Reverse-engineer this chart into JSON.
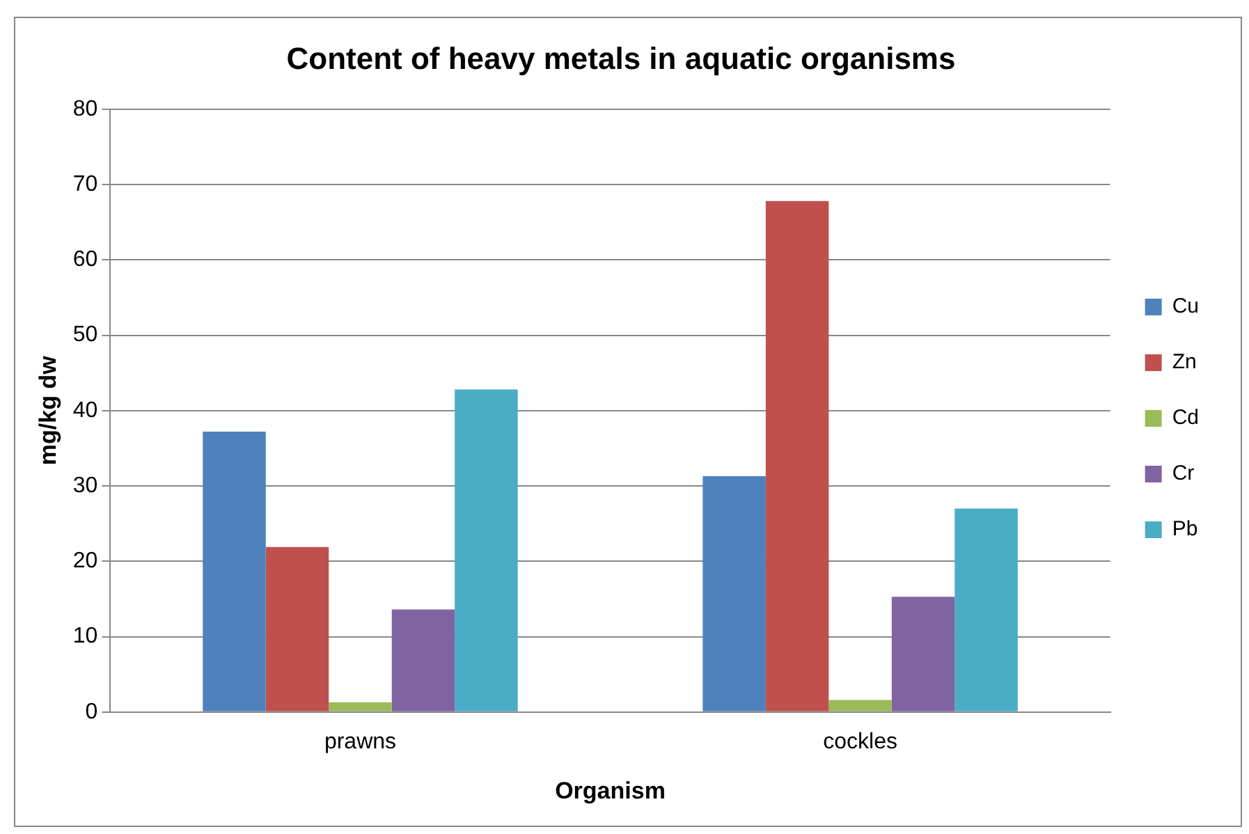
{
  "chart_data": {
    "type": "bar",
    "title": "Content of heavy metals in aquatic organisms",
    "xlabel": "Organism",
    "ylabel": "mg/kg dw",
    "categories": [
      "prawns",
      "cockles"
    ],
    "series": [
      {
        "name": "Cu",
        "color": "#4f81bd",
        "values": [
          37.2,
          31.3
        ]
      },
      {
        "name": "Zn",
        "color": "#c0504d",
        "values": [
          21.9,
          67.8
        ]
      },
      {
        "name": "Cd",
        "color": "#9bbb59",
        "values": [
          1.3,
          1.6
        ]
      },
      {
        "name": "Cr",
        "color": "#8064a2",
        "values": [
          13.6,
          15.3
        ]
      },
      {
        "name": "Pb",
        "color": "#4bacc6",
        "values": [
          42.8,
          27.0
        ]
      }
    ],
    "ylim": [
      0,
      80
    ],
    "yticks": [
      0,
      10,
      20,
      30,
      40,
      50,
      60,
      70,
      80
    ],
    "grid": "y",
    "legend": "right"
  }
}
